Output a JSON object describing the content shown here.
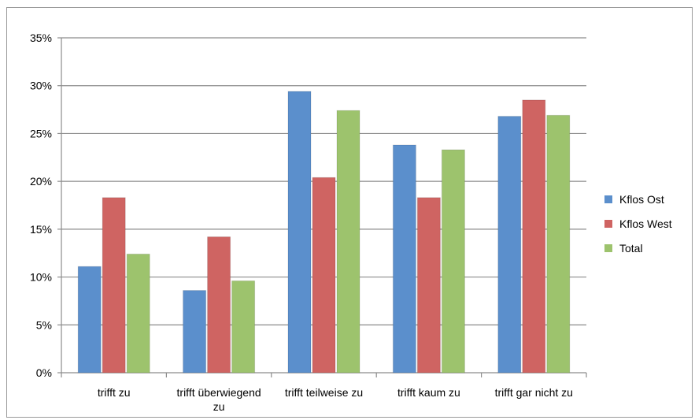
{
  "chart_data": {
    "type": "bar",
    "categories": [
      [
        "trifft zu"
      ],
      [
        "trifft überwiegend",
        "zu"
      ],
      [
        "trifft teilweise zu"
      ],
      [
        "trifft kaum zu"
      ],
      [
        "trifft gar nicht zu"
      ]
    ],
    "series": [
      {
        "name": "Kflos Ost",
        "color": "#5b8fcc",
        "values": [
          11.1,
          8.6,
          29.4,
          23.8,
          26.8
        ]
      },
      {
        "name": "Kflos West",
        "color": "#cf6462",
        "values": [
          18.3,
          14.2,
          20.4,
          18.3,
          28.5
        ]
      },
      {
        "name": "Total",
        "color": "#9dc36d",
        "values": [
          12.4,
          9.6,
          27.4,
          23.3,
          26.9
        ]
      }
    ],
    "ylim": [
      0,
      35
    ],
    "yticks": [
      "0%",
      "5%",
      "10%",
      "15%",
      "20%",
      "25%",
      "30%",
      "35%"
    ],
    "grid": true,
    "legend_position": "right"
  }
}
